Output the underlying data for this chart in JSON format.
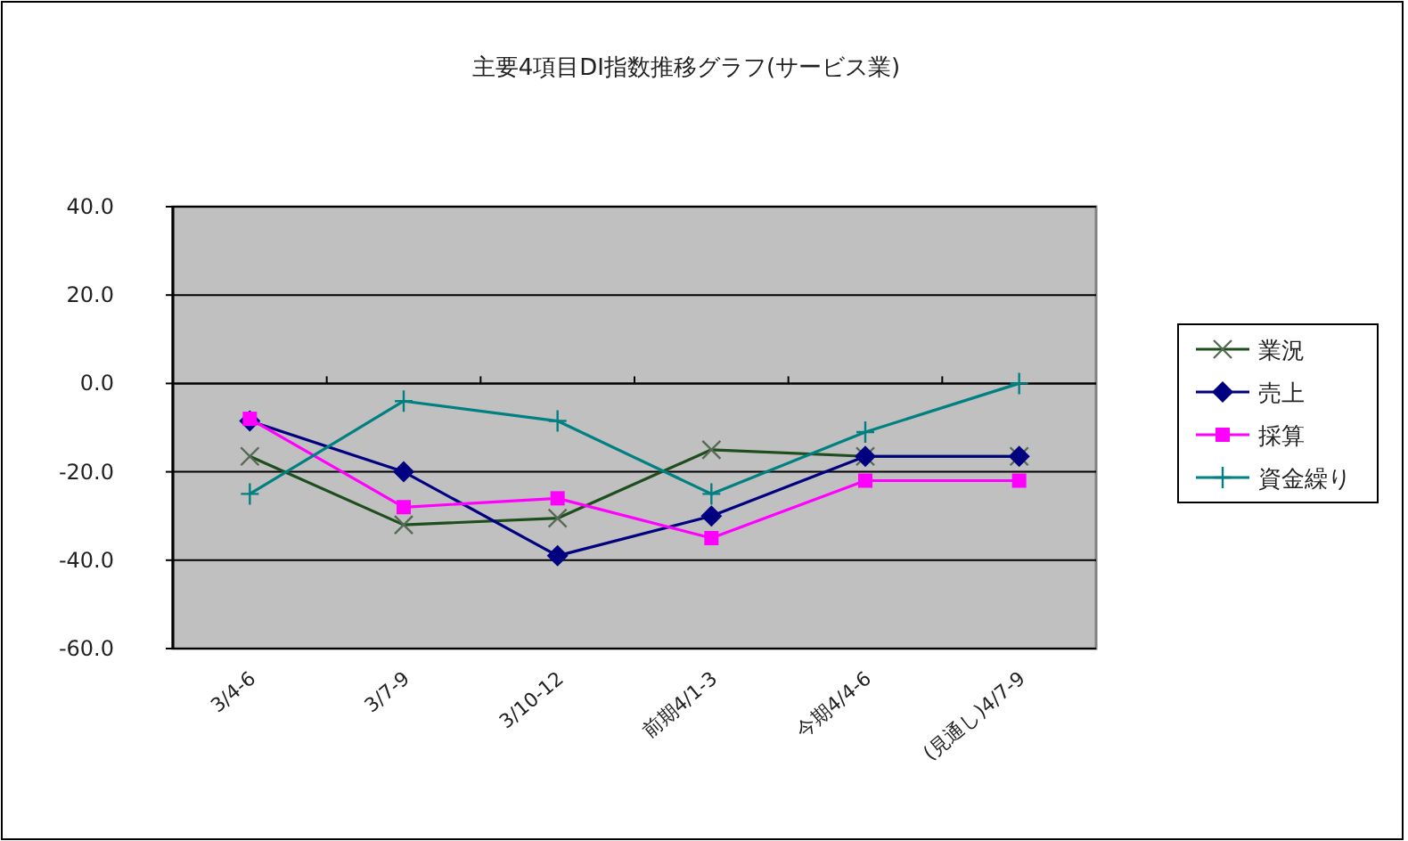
{
  "chart_data": {
    "type": "line",
    "title": "主要4項目DI指数推移グラフ(サービス業)",
    "categories": [
      "3/4-6",
      "3/7-9",
      "3/10-12",
      "前期4/1-3",
      "今期4/4-6",
      "(見通し)4/7-9"
    ],
    "series": [
      {
        "name": "業況",
        "color": "#1e4d1e",
        "marker": "x",
        "values": [
          -16.5,
          -32,
          -30.5,
          -15,
          -16.5,
          -16.5
        ]
      },
      {
        "name": "売上",
        "color": "#000080",
        "marker": "diamond",
        "values": [
          -8.5,
          -20,
          -39,
          -30,
          -16.5,
          -16.5
        ]
      },
      {
        "name": "採算",
        "color": "#ff00ff",
        "marker": "square",
        "values": [
          -8,
          -28,
          -26,
          -35,
          -22,
          -22
        ]
      },
      {
        "name": "資金繰り",
        "color": "#008080",
        "marker": "cross",
        "values": [
          -25,
          -4,
          -8.5,
          -25,
          -11,
          0
        ]
      }
    ],
    "ylim": [
      -60,
      40
    ],
    "yticks": [
      {
        "value": 40,
        "label": "40.0"
      },
      {
        "value": 20,
        "label": "20.0"
      },
      {
        "value": 0,
        "label": "0.0"
      },
      {
        "value": -20,
        "label": "-20.0"
      },
      {
        "value": -40,
        "label": "-40.0"
      },
      {
        "value": -60,
        "label": "-60.0"
      }
    ],
    "grid": "y",
    "legend": "right",
    "line_style": "solid"
  }
}
